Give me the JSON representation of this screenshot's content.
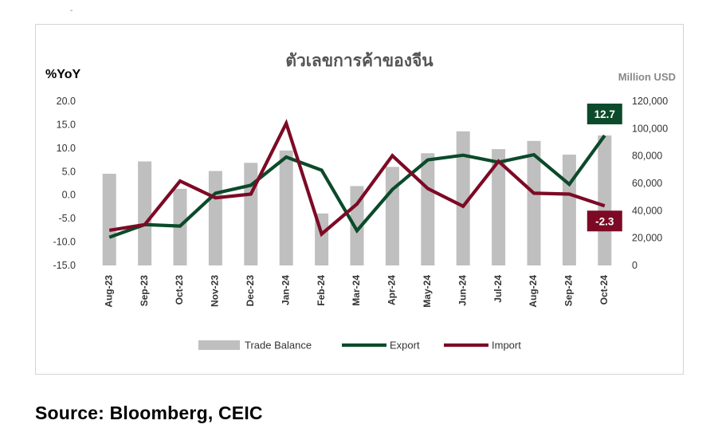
{
  "page": {
    "marker": "-",
    "source": "Source: Bloomberg, CEIC"
  },
  "chart_data": {
    "type": "bar",
    "title": "ตัวเลขการค้าของจีน",
    "ylabel_left": "%YoY",
    "ylabel_right": "Million USD",
    "categories": [
      "Aug-23",
      "Sep-23",
      "Oct-23",
      "Nov-23",
      "Dec-23",
      "Jan-24",
      "Feb-24",
      "Mar-24",
      "Apr-24",
      "May-24",
      "Jun-24",
      "Jul-24",
      "Aug-24",
      "Sep-24",
      "Oct-24"
    ],
    "left_ylim": [
      -15,
      20
    ],
    "left_ticks": [
      "20.0",
      "15.0",
      "10.0",
      "5.0",
      "0.0",
      "-5.0",
      "-10.0",
      "-15.0"
    ],
    "right_ylim": [
      0,
      120000
    ],
    "right_ticks": [
      "120,000",
      "100,000",
      "80,000",
      "60,000",
      "40,000",
      "20,000",
      "0"
    ],
    "series": [
      {
        "name": "Trade Balance",
        "kind": "bar",
        "axis": "right",
        "color": "#bfbfbf",
        "values": [
          67000,
          76000,
          56000,
          69000,
          75000,
          84000,
          38000,
          58000,
          72000,
          82000,
          98000,
          85000,
          91000,
          81000,
          95000
        ]
      },
      {
        "name": "Export",
        "kind": "line",
        "axis": "left",
        "color": "#0b4a2a",
        "values": [
          -9.0,
          -6.3,
          -6.6,
          0.4,
          2.1,
          8.1,
          5.3,
          -7.6,
          1.2,
          7.5,
          8.5,
          7.0,
          8.6,
          2.3,
          12.7
        ]
      },
      {
        "name": "Import",
        "kind": "line",
        "axis": "left",
        "color": "#7d0a25",
        "values": [
          -7.5,
          -6.3,
          3.0,
          -0.6,
          0.2,
          15.3,
          -8.3,
          -1.9,
          8.4,
          1.4,
          -2.4,
          7.2,
          0.4,
          0.2,
          -2.3
        ]
      }
    ],
    "callouts": [
      {
        "series": "Export",
        "label": "12.7",
        "color": "#0b4a2a"
      },
      {
        "series": "Import",
        "label": "-2.3",
        "color": "#7d0a25"
      }
    ],
    "legend_position": "bottom",
    "grid": false
  }
}
